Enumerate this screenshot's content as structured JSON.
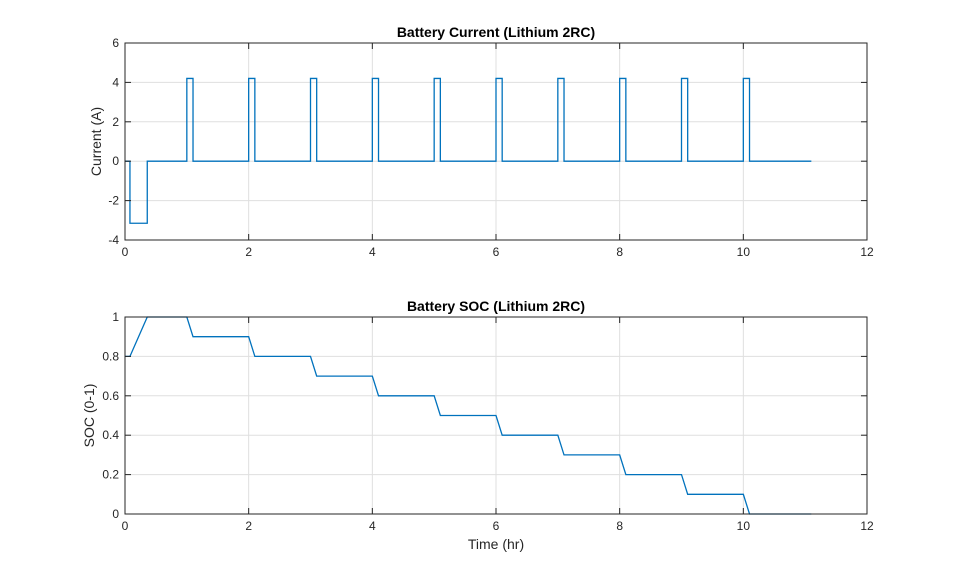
{
  "chart_data": [
    {
      "type": "line",
      "title": "Battery Current (Lithium 2RC)",
      "xlabel": "",
      "ylabel": "Current (A)",
      "xlim": [
        0,
        12
      ],
      "ylim": [
        -4,
        6
      ],
      "xticks": [
        0,
        2,
        4,
        6,
        8,
        10,
        12
      ],
      "yticks": [
        -4,
        -2,
        0,
        2,
        4,
        6
      ],
      "grid": true,
      "series": [
        {
          "color": "#0072BD",
          "x": [
            0,
            0.08,
            0.08,
            0.36,
            0.36,
            1.0,
            1.0,
            1.1,
            1.1,
            2.0,
            2.0,
            2.1,
            2.1,
            3.0,
            3.0,
            3.1,
            3.1,
            4.0,
            4.0,
            4.1,
            4.1,
            5.0,
            5.0,
            5.1,
            5.1,
            6.0,
            6.0,
            6.1,
            6.1,
            7.0,
            7.0,
            7.1,
            7.1,
            8.0,
            8.0,
            8.1,
            8.1,
            9.0,
            9.0,
            9.1,
            9.1,
            10.0,
            10.0,
            10.1,
            10.1,
            11.1
          ],
          "y": [
            0,
            0,
            -3.15,
            -3.15,
            0,
            0,
            4.2,
            4.2,
            0,
            0,
            4.2,
            4.2,
            0,
            0,
            4.2,
            4.2,
            0,
            0,
            4.2,
            4.2,
            0,
            0,
            4.2,
            4.2,
            0,
            0,
            4.2,
            4.2,
            0,
            0,
            4.2,
            4.2,
            0,
            0,
            4.2,
            4.2,
            0,
            0,
            4.2,
            4.2,
            0,
            0,
            4.2,
            4.2,
            0,
            0
          ]
        }
      ]
    },
    {
      "type": "line",
      "title": "Battery SOC (Lithium 2RC)",
      "xlabel": "Time (hr)",
      "ylabel": "SOC (0-1)",
      "xlim": [
        0,
        12
      ],
      "ylim": [
        0,
        1
      ],
      "xticks": [
        0,
        2,
        4,
        6,
        8,
        10,
        12
      ],
      "yticks": [
        0,
        0.2,
        0.4,
        0.6,
        0.8,
        1
      ],
      "grid": true,
      "series": [
        {
          "color": "#0072BD",
          "x": [
            0,
            0.08,
            0.36,
            1.0,
            1.1,
            2.0,
            2.1,
            3.0,
            3.1,
            4.0,
            4.1,
            5.0,
            5.1,
            6.0,
            6.1,
            7.0,
            7.1,
            8.0,
            8.1,
            9.0,
            9.1,
            10.0,
            10.1,
            11.1
          ],
          "y": [
            0.8,
            0.8,
            1.0,
            1.0,
            0.9,
            0.9,
            0.8,
            0.8,
            0.7,
            0.7,
            0.6,
            0.6,
            0.5,
            0.5,
            0.4,
            0.4,
            0.3,
            0.3,
            0.2,
            0.2,
            0.1,
            0.1,
            0.0,
            0.0
          ]
        }
      ]
    }
  ]
}
